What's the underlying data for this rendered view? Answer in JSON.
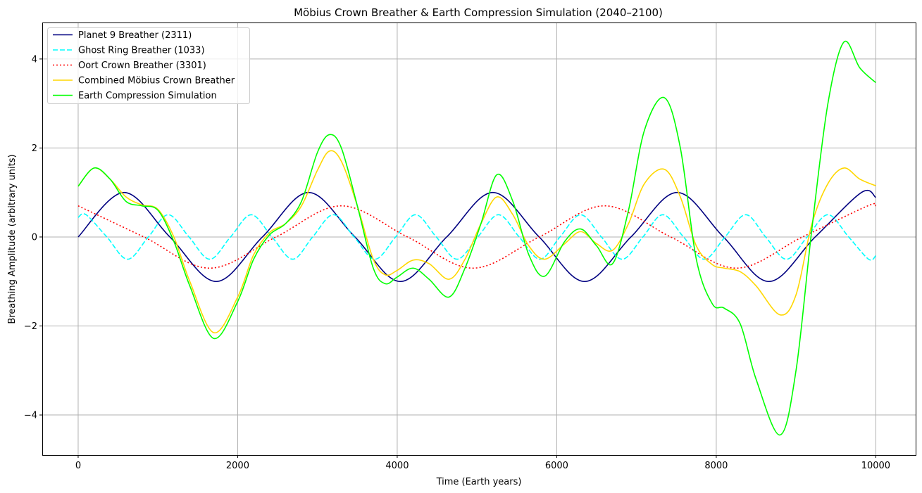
{
  "chart_data": {
    "type": "line",
    "title": "Möbius Crown Breather & Earth Compression Simulation (2040–2100)",
    "xlabel": "Time (Earth years)",
    "ylabel": "Breathing Amplitude (arbitrary units)",
    "xlim": [
      -450,
      10500
    ],
    "ylim": [
      -4.9,
      4.82
    ],
    "xticks": [
      0,
      2000,
      4000,
      6000,
      8000,
      10000
    ],
    "xtick_labels": [
      "0",
      "2000",
      "4000",
      "6000",
      "8000",
      "10000"
    ],
    "yticks": [
      -4,
      -2,
      0,
      2,
      4
    ],
    "ytick_labels": [
      "−4",
      "−2",
      "0",
      "2",
      "4"
    ],
    "grid": true,
    "legend_position": "top-left",
    "series": [
      {
        "name": "Planet 9 Breather (2311)",
        "color": "#000080",
        "dash": "solid",
        "x": [
          0,
          575,
          1150,
          1730,
          2310,
          2890,
          3470,
          4040,
          4620,
          5200,
          5780,
          6350,
          6930,
          7510,
          8090,
          8660,
          9240,
          9820,
          10000
        ],
        "y": [
          0.0,
          1.0,
          0.0,
          -1.0,
          0.0,
          1.0,
          0.0,
          -1.0,
          0.0,
          1.0,
          0.0,
          -1.0,
          0.0,
          1.0,
          0.0,
          -1.0,
          0.0,
          1.0,
          0.89
        ]
      },
      {
        "name": "Ghost Ring Breather (1033)",
        "color": "#00ffff",
        "dash": "dashed",
        "x": [
          0,
          100,
          360,
          620,
          880,
          1130,
          1390,
          1650,
          1910,
          2170,
          2430,
          2690,
          2940,
          3200,
          3460,
          3720,
          3980,
          4230,
          4490,
          4750,
          5010,
          5270,
          5530,
          5790,
          6040,
          6300,
          6560,
          6820,
          7080,
          7330,
          7590,
          7850,
          8110,
          8370,
          8620,
          8880,
          9140,
          9400,
          9660,
          9910,
          10000
        ],
        "y": [
          0.44,
          0.5,
          0.0,
          -0.5,
          0.0,
          0.5,
          0.0,
          -0.5,
          0.0,
          0.5,
          0.0,
          -0.5,
          0.0,
          0.5,
          0.0,
          -0.5,
          0.0,
          0.5,
          0.0,
          -0.5,
          0.0,
          0.5,
          0.0,
          -0.5,
          0.0,
          0.5,
          0.0,
          -0.5,
          0.0,
          0.5,
          0.0,
          -0.5,
          0.0,
          0.5,
          0.0,
          -0.5,
          0.0,
          0.5,
          0.0,
          -0.5,
          -0.42
        ]
      },
      {
        "name": "Oort Crown Breather (3301)",
        "color": "#ff0000",
        "dash": "dotted",
        "x": [
          0,
          825,
          1650,
          2480,
          3300,
          4130,
          4950,
          5780,
          6600,
          7430,
          8250,
          9080,
          9900,
          10000
        ],
        "y": [
          0.7,
          0.0,
          -0.7,
          0.0,
          0.7,
          0.0,
          -0.7,
          0.0,
          0.7,
          0.0,
          -0.7,
          0.0,
          0.7,
          0.7
        ]
      },
      {
        "name": "Combined Möbius Crown Breather",
        "color": "#ffd700",
        "dash": "solid",
        "x": [
          0,
          200,
          400,
          600,
          800,
          1000,
          1200,
          1400,
          1700,
          2000,
          2200,
          2400,
          2600,
          2800,
          3000,
          3150,
          3300,
          3500,
          3700,
          3850,
          4000,
          4200,
          4400,
          4650,
          4850,
          5050,
          5250,
          5450,
          5650,
          5850,
          6100,
          6300,
          6500,
          6700,
          6900,
          7100,
          7350,
          7550,
          7750,
          7950,
          8100,
          8300,
          8500,
          8800,
          9000,
          9200,
          9400,
          9600,
          9800,
          10000
        ],
        "y": [
          1.14,
          1.55,
          1.3,
          0.9,
          0.72,
          0.62,
          0.0,
          -1.0,
          -2.15,
          -1.35,
          -0.4,
          0.1,
          0.3,
          0.7,
          1.5,
          1.93,
          1.7,
          0.7,
          -0.5,
          -0.85,
          -0.75,
          -0.52,
          -0.6,
          -0.95,
          -0.5,
          0.3,
          0.9,
          0.5,
          -0.2,
          -0.5,
          -0.15,
          0.12,
          -0.15,
          -0.3,
          0.3,
          1.2,
          1.52,
          0.9,
          -0.2,
          -0.62,
          -0.7,
          -0.78,
          -1.1,
          -1.75,
          -1.3,
          0.3,
          1.2,
          1.55,
          1.3,
          1.15
        ]
      },
      {
        "name": "Earth Compression Simulation",
        "color": "#00ff00",
        "dash": "solid",
        "x": [
          0,
          200,
          400,
          600,
          800,
          1000,
          1200,
          1400,
          1700,
          2000,
          2200,
          2400,
          2600,
          2800,
          3000,
          3150,
          3300,
          3500,
          3700,
          3850,
          4000,
          4200,
          4400,
          4650,
          4850,
          5050,
          5250,
          5450,
          5650,
          5850,
          6100,
          6300,
          6500,
          6700,
          6900,
          7100,
          7350,
          7550,
          7750,
          7950,
          8100,
          8300,
          8500,
          8800,
          9000,
          9200,
          9400,
          9600,
          9800,
          10000
        ],
        "y": [
          1.14,
          1.55,
          1.3,
          0.8,
          0.7,
          0.6,
          -0.1,
          -1.1,
          -2.28,
          -1.45,
          -0.5,
          0.05,
          0.3,
          0.8,
          1.9,
          2.3,
          2.0,
          0.7,
          -0.7,
          -1.05,
          -0.9,
          -0.7,
          -0.95,
          -1.35,
          -0.7,
          0.3,
          1.4,
          0.8,
          -0.4,
          -0.88,
          -0.1,
          0.18,
          -0.2,
          -0.6,
          0.6,
          2.4,
          3.13,
          2.0,
          -0.5,
          -1.5,
          -1.6,
          -1.95,
          -3.2,
          -4.45,
          -3.0,
          0.2,
          3.0,
          4.38,
          3.8,
          3.47
        ]
      }
    ]
  }
}
